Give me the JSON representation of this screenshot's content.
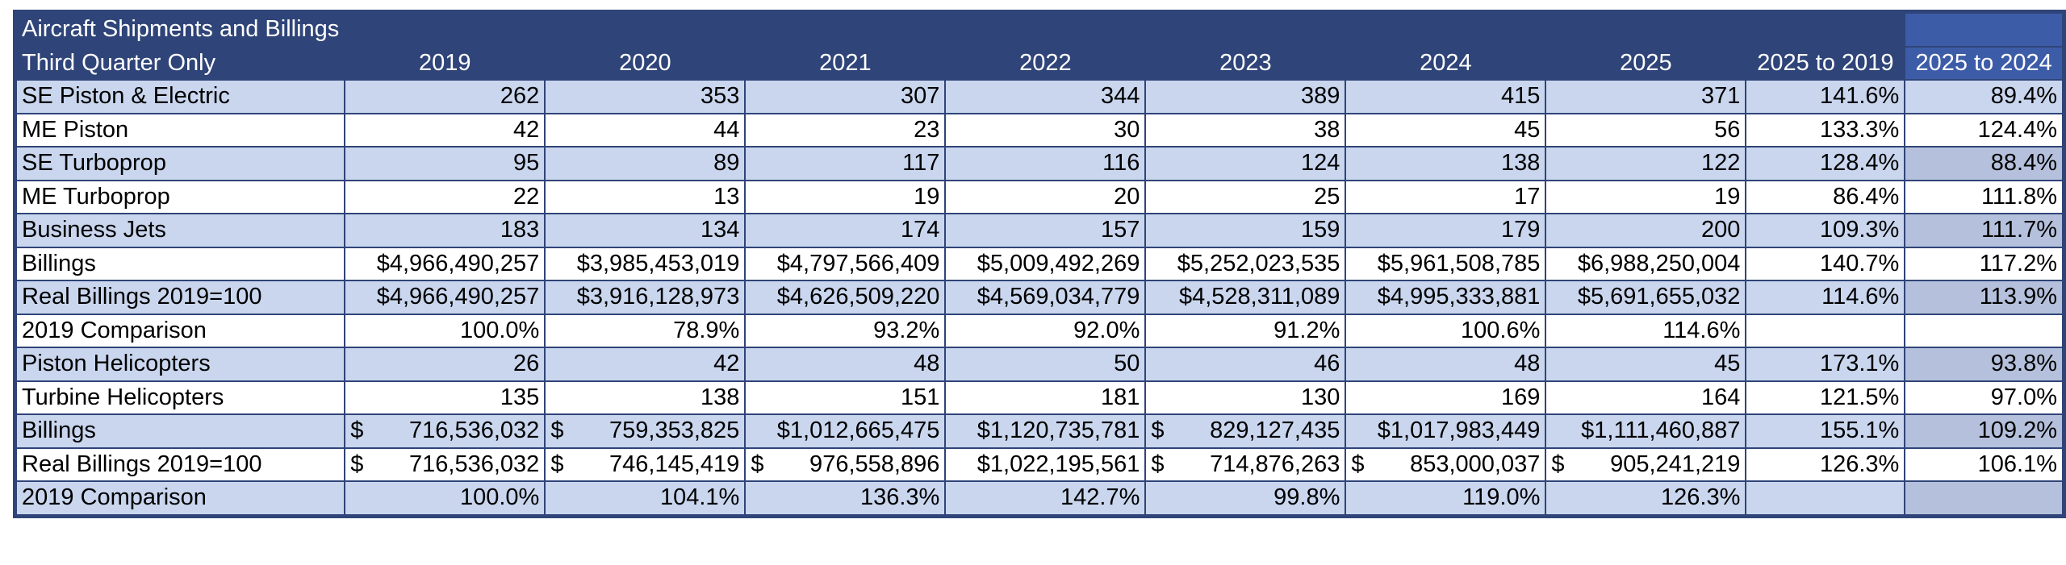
{
  "title": "Aircraft Shipments and Billings",
  "header": [
    "Third Quarter Only",
    "2019",
    "2020",
    "2021",
    "2022",
    "2023",
    "2024",
    "2025",
    "2025 to 2019",
    "2025 to 2024"
  ],
  "rows": [
    [
      "SE Piston & Electric",
      "262",
      "353",
      "307",
      "344",
      "389",
      "415",
      "371",
      "141.6%",
      "89.4%"
    ],
    [
      "ME Piston",
      "42",
      "44",
      "23",
      "30",
      "38",
      "45",
      "56",
      "133.3%",
      "124.4%"
    ],
    [
      "SE Turboprop",
      "95",
      "89",
      "117",
      "116",
      "124",
      "138",
      "122",
      "128.4%",
      "88.4%"
    ],
    [
      "ME Turboprop",
      "22",
      "13",
      "19",
      "20",
      "25",
      "17",
      "19",
      "86.4%",
      "111.8%"
    ],
    [
      "Business Jets",
      "183",
      "134",
      "174",
      "157",
      "159",
      "179",
      "200",
      "109.3%",
      "111.7%"
    ],
    [
      "Billings",
      "$4,966,490,257",
      "$3,985,453,019",
      "$4,797,566,409",
      "$5,009,492,269",
      "$5,252,023,535",
      "$5,961,508,785",
      "$6,988,250,004",
      "140.7%",
      "117.2%"
    ],
    [
      "Real Billings 2019=100",
      "$4,966,490,257",
      "$3,916,128,973",
      "$4,626,509,220",
      "$4,569,034,779",
      "$4,528,311,089",
      "$4,995,333,881",
      "$5,691,655,032",
      "114.6%",
      "113.9%"
    ],
    [
      "2019 Comparison",
      "100.0%",
      "78.9%",
      "93.2%",
      "92.0%",
      "91.2%",
      "100.6%",
      "114.6%",
      null,
      null
    ],
    [
      "Piston Helicopters",
      "26",
      "42",
      "48",
      "50",
      "46",
      "48",
      "45",
      "173.1%",
      "93.8%"
    ],
    [
      "Turbine Helicopters",
      "135",
      "138",
      "151",
      "181",
      "130",
      "169",
      "164",
      "121.5%",
      "97.0%"
    ],
    [
      "Billings",
      "$ 716,536,032",
      "$ 759,353,825",
      "$1,012,665,475",
      "$1,120,735,781",
      "$ 829,127,435",
      "$1,017,983,449",
      "$1,111,460,887",
      "155.1%",
      "109.2%"
    ],
    [
      "Real Billings 2019=100",
      "$ 716,536,032",
      "$ 746,145,419",
      "$ 976,558,896",
      "$1,022,195,561",
      "$ 714,876,263",
      "$ 853,000,037",
      "$ 905,241,219",
      "126.3%",
      "106.1%"
    ],
    [
      "2019 Comparison",
      "100.0%",
      "104.1%",
      "136.3%",
      "142.7%",
      "99.8%",
      "119.0%",
      "126.3%",
      null,
      null
    ]
  ]
}
